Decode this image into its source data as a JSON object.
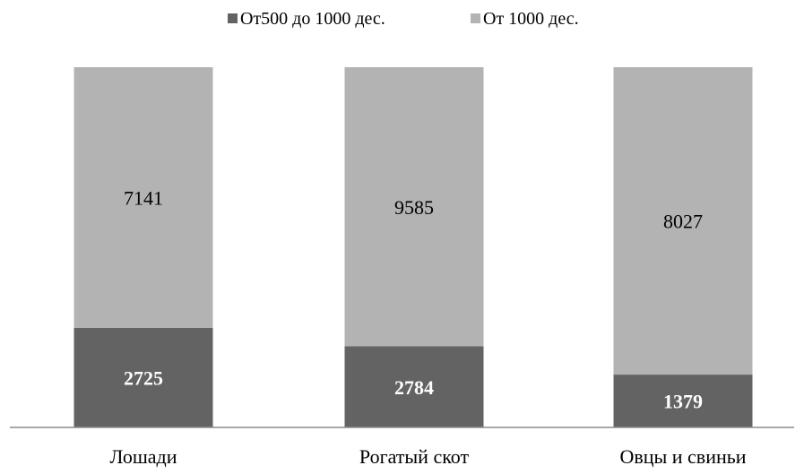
{
  "chart_data": {
    "type": "bar",
    "stacked": "100%",
    "categories": [
      "Лошади",
      "Рогатый скот",
      "Овцы и свиньи"
    ],
    "series": [
      {
        "name": "От500 до 1000 дес.",
        "values": [
          2725,
          2784,
          1379
        ],
        "color": "#636363"
      },
      {
        "name": "От 1000 дес.",
        "values": [
          7141,
          9585,
          8027
        ],
        "color": "#b3b3b3"
      }
    ],
    "legend_position": "top",
    "grid": false,
    "data_labels": true
  }
}
